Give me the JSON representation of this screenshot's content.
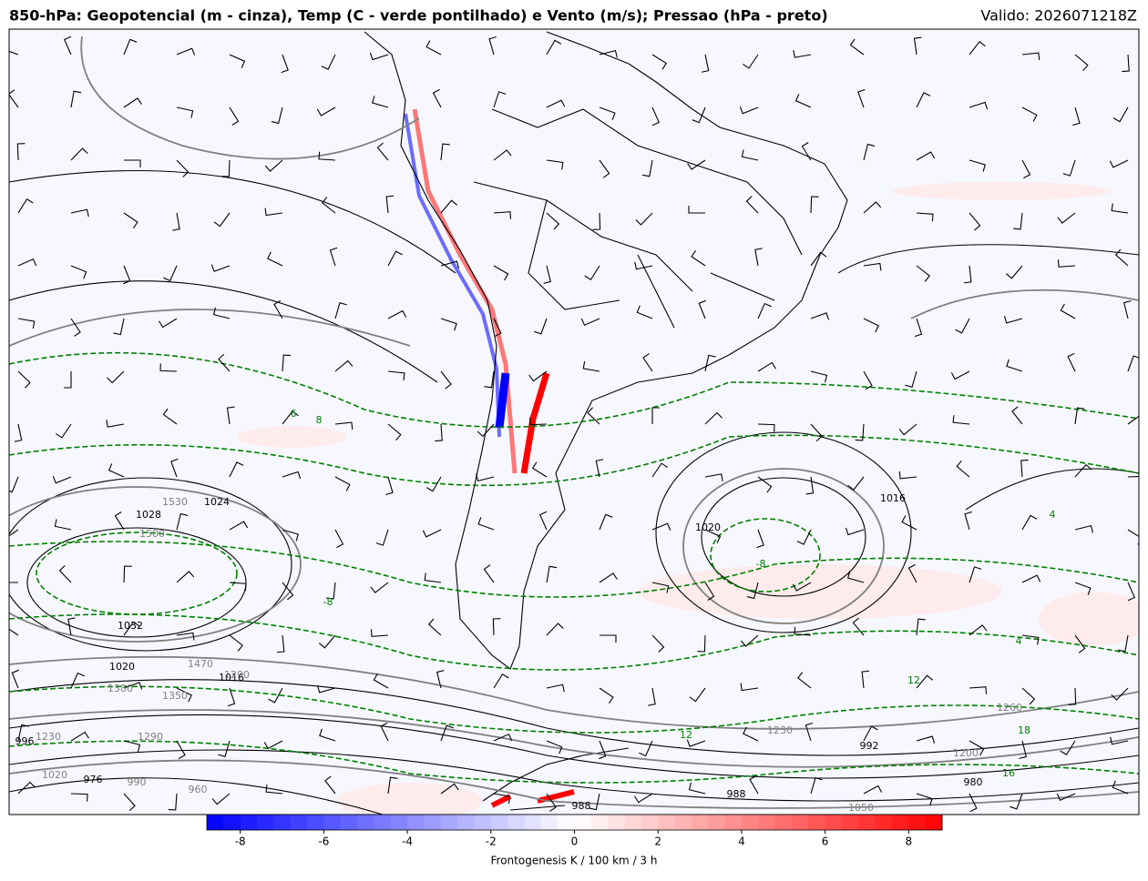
{
  "header": {
    "title": "850-hPa: Geopotencial (m - cinza), Temp (C - verde pontilhado) e Vento (m/s); Pressao (hPa - preto)",
    "valid": "Valido: 2026071218Z"
  },
  "colorbar": {
    "label": "Frontogenesis K / 100 km / 3 h",
    "clim": [
      -8.8,
      8.8
    ],
    "ticks": [
      -8,
      -6,
      -4,
      -2,
      0,
      2,
      4,
      6,
      8
    ],
    "cmap": [
      "#0000ff",
      "#ffffff",
      "#ff0000"
    ]
  },
  "pressure_labels": [
    "1024",
    "1028",
    "1032",
    "1020",
    "1016",
    "1020",
    "1016",
    "992",
    "988",
    "988",
    "980",
    "976",
    "996"
  ],
  "height_labels": [
    "1530",
    "1500",
    "1470",
    "1380",
    "1350",
    "1290",
    "1260",
    "1230",
    "1200",
    "1230",
    "960",
    "1050",
    "990",
    "1020",
    "1290"
  ],
  "temperature_labels": [
    "8",
    "6",
    "-8",
    "-8",
    "4",
    "12",
    "12",
    "16",
    "18",
    "4"
  ]
}
